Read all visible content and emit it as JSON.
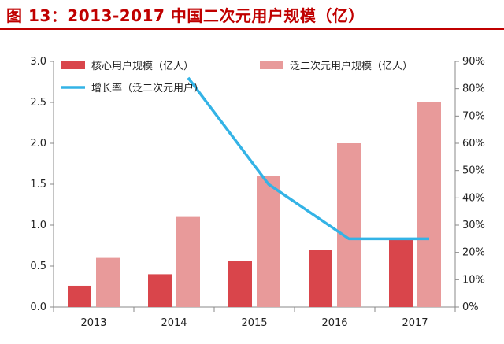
{
  "title": "图 13：2013-2017 中国二次元用户规模（亿）",
  "chart_data": {
    "type": "bar",
    "categories": [
      "2013",
      "2014",
      "2015",
      "2016",
      "2017"
    ],
    "series": [
      {
        "name": "核心用户规模（亿人）",
        "kind": "bar",
        "axis": "left",
        "color": "#d9454b",
        "values": [
          0.26,
          0.4,
          0.56,
          0.7,
          0.82
        ]
      },
      {
        "name": "泛二次元用户规模（亿人）",
        "kind": "bar",
        "axis": "left",
        "color": "#e89a9a",
        "values": [
          0.6,
          1.1,
          1.6,
          2.0,
          2.5
        ]
      },
      {
        "name": "增长率（泛二次元用户）",
        "kind": "line",
        "axis": "right",
        "color": "#33b3e6",
        "values": [
          null,
          0.84,
          0.45,
          0.25,
          0.25
        ]
      }
    ],
    "y_left": {
      "range": [
        0,
        3.0
      ],
      "ticks": [
        "0.0",
        "0.5",
        "1.0",
        "1.5",
        "2.0",
        "2.5",
        "3.0"
      ]
    },
    "y_right": {
      "range": [
        0,
        0.9
      ],
      "ticks": [
        "0%",
        "10%",
        "20%",
        "30%",
        "40%",
        "50%",
        "60%",
        "70%",
        "80%",
        "90%"
      ]
    },
    "legend": "top",
    "grid": false
  }
}
